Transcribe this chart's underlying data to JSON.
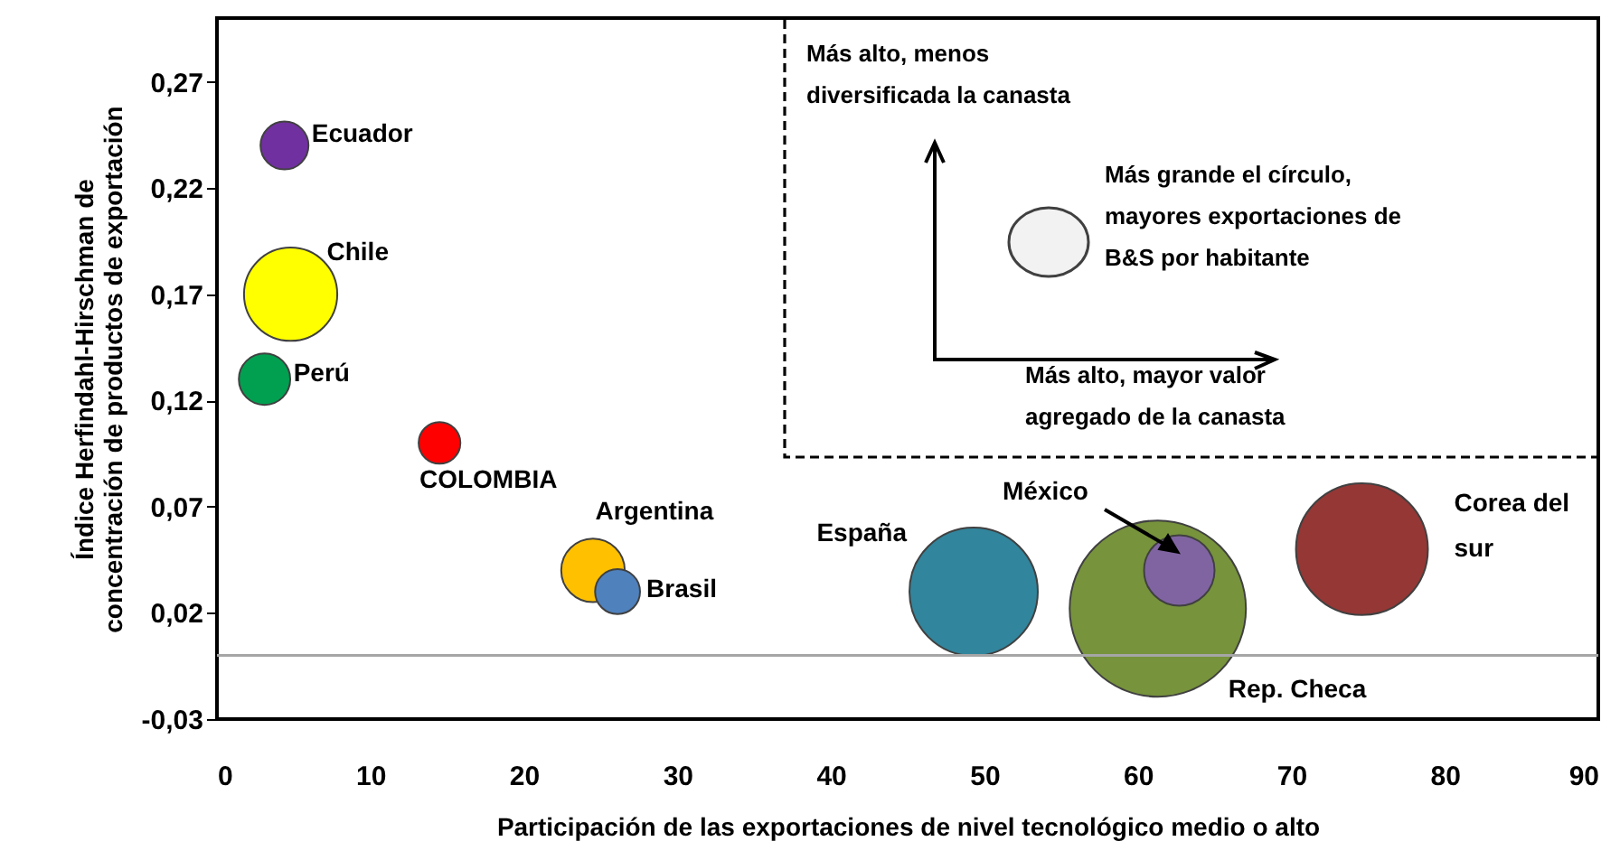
{
  "chart_data": {
    "type": "bubble",
    "xlabel": "Participación de las exportaciones de nivel tecnológico medio o alto",
    "ylabel": "Índice Herfindahl-Hirschman de concentración de productos de exportación",
    "xlim": [
      0,
      90
    ],
    "xticks": [
      0,
      10,
      20,
      30,
      40,
      50,
      60,
      70,
      80,
      90
    ],
    "ylim": [
      -0.03,
      0.3
    ],
    "yticks": [
      {
        "value": -0.03,
        "label": "-0,03"
      },
      {
        "value": 0.02,
        "label": "0,02"
      },
      {
        "value": 0.07,
        "label": "0,07"
      },
      {
        "value": 0.12,
        "label": "0,12"
      },
      {
        "value": 0.17,
        "label": "0,17"
      },
      {
        "value": 0.22,
        "label": "0,22"
      },
      {
        "value": 0.27,
        "label": "0,27"
      }
    ],
    "ref_lines": [
      {
        "axis": "y",
        "value": 0,
        "color": "#a6a6a6",
        "line_style": "solid"
      }
    ],
    "annotations": [
      "Más alto, menos diversificada la canasta",
      "Más grande el círculo, mayores exportaciones de B&S por habitante",
      "Más alto, mayor valor agregado de la canasta"
    ],
    "series": [
      {
        "name": "Ecuador",
        "color": "#7030a0",
        "x": [
          4.4
        ],
        "values": [
          0.24
        ],
        "sizes": [
          0.074
        ]
      },
      {
        "name": "Chile",
        "color": "#ffff00",
        "x": [
          4.8
        ],
        "values": [
          0.17
        ],
        "sizes": [
          0.28
        ]
      },
      {
        "name": "Perú",
        "color": "#00a050",
        "x": [
          3.1
        ],
        "values": [
          0.13
        ],
        "sizes": [
          0.085
        ]
      },
      {
        "name": "COLOMBIA",
        "color": "#ff0000",
        "x": [
          14.5
        ],
        "values": [
          0.1
        ],
        "sizes": [
          0.056
        ]
      },
      {
        "name": "Argentina",
        "color": "#ffc000",
        "x": [
          24.5
        ],
        "values": [
          0.04
        ],
        "sizes": [
          0.13
        ]
      },
      {
        "name": "Brasil",
        "color": "#4f81bd",
        "x": [
          26.1
        ],
        "values": [
          0.03
        ],
        "sizes": [
          0.065
        ]
      },
      {
        "name": "España",
        "color": "#31859c",
        "x": [
          49.3
        ],
        "values": [
          0.03
        ],
        "sizes": [
          0.53
        ]
      },
      {
        "name": "Rep. Checa",
        "color": "#77933c",
        "x": [
          61.3
        ],
        "values": [
          0.022
        ],
        "sizes": [
          1
        ]
      },
      {
        "name": "México",
        "color": "#8064a2",
        "x": [
          62.7
        ],
        "values": [
          0.04
        ],
        "sizes": [
          0.16
        ]
      },
      {
        "name": "Corea del sur",
        "color": "#953735",
        "x": [
          74.6
        ],
        "values": [
          0.05
        ],
        "sizes": [
          0.56
        ]
      }
    ]
  }
}
